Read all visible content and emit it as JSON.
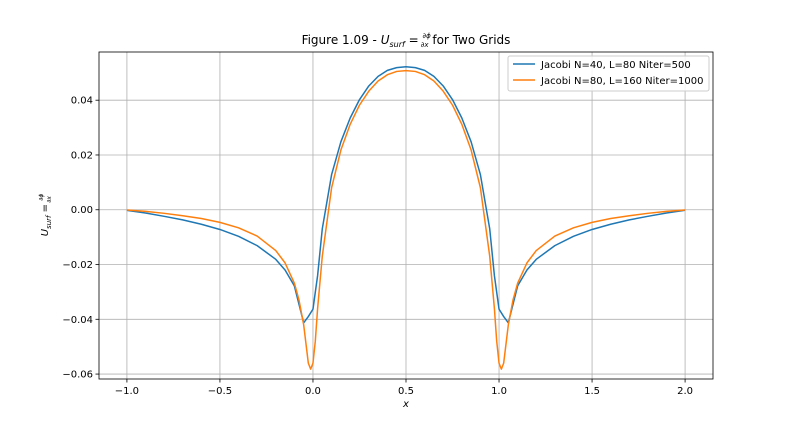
{
  "chart_data": {
    "type": "line",
    "title": "Figure 1.09 - ",
    "title_symbol": "U",
    "title_symbol_sub": "surf",
    "title_eq": " = ",
    "title_frac_num": "∂ϕ",
    "title_frac_den": "∂x",
    "title_suffix": " for Two Grids",
    "xlabel": "x",
    "ylabel_symbol": "U",
    "ylabel_sub": "surf",
    "ylabel_eq": " = ",
    "ylabel_frac_num": "∂ϕ",
    "ylabel_frac_den": "∂x",
    "xlim": [
      -1.15,
      2.15
    ],
    "ylim": [
      -0.0618,
      0.0576
    ],
    "grid": true,
    "legend_position": "top-right",
    "xticks": [
      -1.0,
      -0.5,
      0.0,
      0.5,
      1.0,
      1.5,
      2.0
    ],
    "xtick_labels": [
      "−1.0",
      "−0.5",
      "0.0",
      "0.5",
      "1.0",
      "1.5",
      "2.0"
    ],
    "yticks": [
      -0.06,
      -0.04,
      -0.02,
      0.0,
      0.02,
      0.04
    ],
    "ytick_labels": [
      "−0.06",
      "−0.04",
      "−0.02",
      "0.00",
      "0.02",
      "0.04"
    ],
    "series": [
      {
        "name": "Jacobi N=40, L=80 Niter=500",
        "color": "#1f77b4",
        "x": [
          -1.0,
          -0.9,
          -0.8,
          -0.7,
          -0.6,
          -0.5,
          -0.4,
          -0.3,
          -0.2,
          -0.15,
          -0.1,
          -0.05,
          -0.025,
          0.0,
          0.025,
          0.05,
          0.1,
          0.15,
          0.2,
          0.25,
          0.3,
          0.35,
          0.4,
          0.45,
          0.5,
          0.55,
          0.6,
          0.65,
          0.7,
          0.75,
          0.8,
          0.85,
          0.9,
          0.95,
          0.975,
          1.0,
          1.025,
          1.05,
          1.1,
          1.15,
          1.2,
          1.3,
          1.4,
          1.5,
          1.6,
          1.7,
          1.8,
          1.9,
          2.0
        ],
        "y": [
          -0.0002,
          -0.0012,
          -0.0024,
          -0.0037,
          -0.0053,
          -0.0072,
          -0.0097,
          -0.0131,
          -0.0181,
          -0.022,
          -0.0278,
          -0.0413,
          -0.039,
          -0.0363,
          -0.024,
          -0.007,
          0.0128,
          0.0248,
          0.0335,
          0.0402,
          0.0452,
          0.0487,
          0.0509,
          0.0519,
          0.0522,
          0.0519,
          0.0509,
          0.0487,
          0.0452,
          0.0402,
          0.0335,
          0.0248,
          0.0128,
          -0.007,
          -0.024,
          -0.0363,
          -0.039,
          -0.0413,
          -0.0278,
          -0.022,
          -0.0181,
          -0.0131,
          -0.0097,
          -0.0072,
          -0.0053,
          -0.0037,
          -0.0024,
          -0.0012,
          -0.0002
        ]
      },
      {
        "name": "Jacobi N=80, L=160 Niter=1000",
        "color": "#ff7f0e",
        "x": [
          -1.0,
          -0.9,
          -0.8,
          -0.7,
          -0.6,
          -0.5,
          -0.4,
          -0.3,
          -0.2,
          -0.15,
          -0.1,
          -0.075,
          -0.05,
          -0.025,
          -0.0125,
          0.0,
          0.0125,
          0.025,
          0.05,
          0.1,
          0.15,
          0.2,
          0.25,
          0.3,
          0.35,
          0.4,
          0.45,
          0.5,
          0.55,
          0.6,
          0.65,
          0.7,
          0.75,
          0.8,
          0.85,
          0.9,
          0.95,
          0.975,
          0.9875,
          1.0,
          1.0125,
          1.025,
          1.05,
          1.075,
          1.1,
          1.15,
          1.2,
          1.3,
          1.4,
          1.5,
          1.6,
          1.7,
          1.8,
          1.9,
          2.0
        ],
        "y": [
          -0.0001,
          -0.0006,
          -0.0013,
          -0.0022,
          -0.0032,
          -0.0046,
          -0.0066,
          -0.0096,
          -0.0149,
          -0.0194,
          -0.0268,
          -0.033,
          -0.042,
          -0.056,
          -0.0582,
          -0.056,
          -0.048,
          -0.036,
          -0.017,
          0.008,
          0.0218,
          0.0312,
          0.0382,
          0.0433,
          0.047,
          0.0493,
          0.0505,
          0.0508,
          0.0505,
          0.0493,
          0.047,
          0.0433,
          0.0382,
          0.0312,
          0.0218,
          0.008,
          -0.017,
          -0.036,
          -0.048,
          -0.056,
          -0.0582,
          -0.056,
          -0.042,
          -0.033,
          -0.0268,
          -0.0194,
          -0.0149,
          -0.0096,
          -0.0066,
          -0.0046,
          -0.0032,
          -0.0022,
          -0.0013,
          -0.0006,
          -0.0001
        ]
      }
    ]
  }
}
